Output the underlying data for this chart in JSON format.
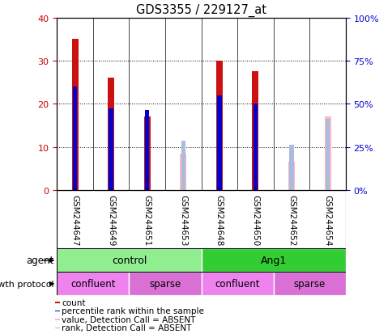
{
  "title": "GDS3355 / 229127_at",
  "samples": [
    "GSM244647",
    "GSM244649",
    "GSM244651",
    "GSM244653",
    "GSM244648",
    "GSM244650",
    "GSM244652",
    "GSM244654"
  ],
  "count_values": [
    35,
    26,
    17,
    null,
    30,
    27.5,
    null,
    null
  ],
  "percentile_rank": [
    24,
    19,
    18.5,
    null,
    22,
    20,
    null,
    null
  ],
  "absent_value": [
    null,
    null,
    null,
    8.5,
    null,
    null,
    6.5,
    17
  ],
  "absent_rank": [
    null,
    null,
    null,
    11.5,
    null,
    null,
    10.5,
    16.5
  ],
  "ylim_left": [
    0,
    40
  ],
  "ylim_right": [
    0,
    100
  ],
  "yticks_left": [
    0,
    10,
    20,
    30,
    40
  ],
  "yticks_right": [
    0,
    25,
    50,
    75,
    100
  ],
  "agent_groups": [
    {
      "label": "control",
      "span": [
        0,
        4
      ],
      "color": "#90EE90"
    },
    {
      "label": "Ang1",
      "span": [
        4,
        8
      ],
      "color": "#32CD32"
    }
  ],
  "growth_groups": [
    {
      "label": "confluent",
      "span": [
        0,
        2
      ],
      "color": "#EE82EE"
    },
    {
      "label": "sparse",
      "span": [
        2,
        4
      ],
      "color": "#DA70D6"
    },
    {
      "label": "confluent",
      "span": [
        4,
        6
      ],
      "color": "#EE82EE"
    },
    {
      "label": "sparse",
      "span": [
        6,
        8
      ],
      "color": "#DA70D6"
    }
  ],
  "count_color": "#CC1111",
  "rank_color": "#0000CC",
  "absent_val_color": "#FFB6C1",
  "absent_rank_color": "#AABBDD",
  "tick_color_left": "#CC0000",
  "tick_color_right": "#0000CC",
  "legend_items": [
    {
      "label": "count",
      "color": "#CC1111"
    },
    {
      "label": "percentile rank within the sample",
      "color": "#0000CC"
    },
    {
      "label": "value, Detection Call = ABSENT",
      "color": "#FFB6C1"
    },
    {
      "label": "rank, Detection Call = ABSENT",
      "color": "#AABBDD"
    }
  ]
}
